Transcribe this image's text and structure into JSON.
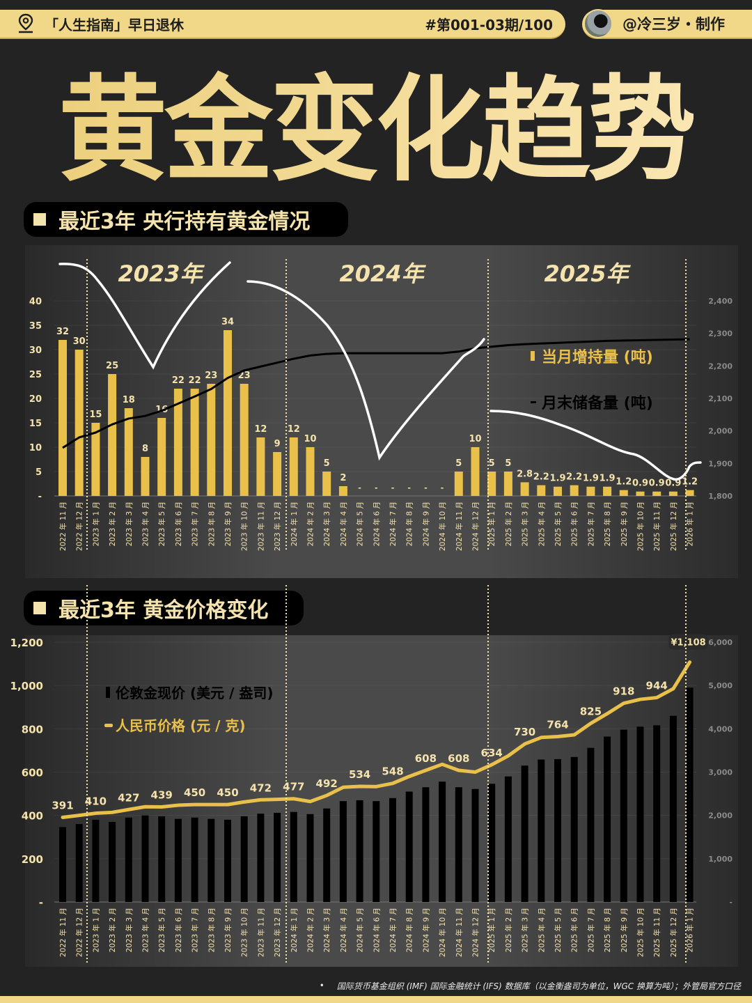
{
  "header": {
    "series_label": "「人生指南」早日退休",
    "issue": "#第001-03期/100",
    "author": "@冷三岁・制作",
    "icons": {
      "location": "map-pin-icon",
      "avatar": "avatar-photo"
    }
  },
  "hero_title": "黄金变化趋势",
  "colors": {
    "background": "#232323",
    "gold": "#e9c04a",
    "cream": "#f5e3ad",
    "banner": "#f1d888",
    "black": "#000000",
    "annotation": "#ffffff"
  },
  "section1": {
    "title": "最近3年 央行持有黄金情况"
  },
  "section2": {
    "title": "最近3年 黄金价格变化"
  },
  "footer": {
    "bullet": "•",
    "source": "国际货币基金组织 (IMF) 国际金融统计 (IFS) 数据库（以金衡盎司为单位，WGC 换算为吨）；外管局官方口径"
  },
  "chart_data": [
    {
      "type": "bar+line",
      "title": "最近3年 央行持有黄金情况",
      "year_labels": [
        "2023年",
        "2024年",
        "2025年"
      ],
      "categories": [
        "2022 年 11 月",
        "2022 年 12 月",
        "2023 年 1 月",
        "2023 年 2 月",
        "2023 年 3 月",
        "2023 年 4 月",
        "2023 年 5 月",
        "2023 年 6 月",
        "2023 年 7 月",
        "2023 年 8 月",
        "2023 年 9 月",
        "2023 年 10 月",
        "2023 年 11 月",
        "2023 年 12 月",
        "2024 年 1 月",
        "2024 年 2 月",
        "2024 年 3 月",
        "2024 年 4 月",
        "2024 年 5 月",
        "2024 年 6 月",
        "2024 年 7 月",
        "2024 年 8 月",
        "2024 年 9 月",
        "2024 年 10 月",
        "2024 年 11 月",
        "2024 年 12 月",
        "2025 年 1 月",
        "2025 年 2 月",
        "2025 年 3 月",
        "2025 年 4 月",
        "2025 年 5 月",
        "2025 年 6 月",
        "2025 年 7 月",
        "2025 年 8 月",
        "2025 年 9 月",
        "2025 年 10 月",
        "2025 年 11 月",
        "2025 年 12 月",
        "2026 年 1 月"
      ],
      "series": [
        {
          "name": "当月增持量 (吨)",
          "type": "bar",
          "axis": "left",
          "color": "#e9c04a",
          "values": [
            32,
            30,
            15,
            25,
            18,
            8,
            16,
            22,
            22,
            23,
            34,
            23,
            12,
            9,
            12,
            10,
            5,
            2,
            0,
            0,
            0,
            0,
            0,
            0,
            5,
            10,
            5,
            5,
            2.8,
            2.2,
            1.9,
            2.2,
            1.9,
            1.9,
            1.2,
            0.9,
            0.9,
            0.9,
            1.2
          ],
          "labels": [
            "32",
            "30",
            "15",
            "25",
            "18",
            "8",
            "16",
            "22",
            "22",
            "23",
            "34",
            "23",
            "12",
            "9",
            "12",
            "10",
            "5",
            "2",
            "-",
            "-",
            "-",
            "-",
            "-",
            "-",
            "5",
            "10",
            "5",
            "5",
            "2.8",
            "2.2",
            "1.9",
            "2.2",
            "1.9",
            "1.9",
            "1.2",
            "0.9",
            "0.9",
            "0.9",
            "1.2"
          ]
        },
        {
          "name": "月末储备量 (吨)",
          "type": "line",
          "axis": "right",
          "color": "#000000",
          "values": [
            1948,
            1980,
            1995,
            2020,
            2038,
            2046,
            2062,
            2084,
            2106,
            2129,
            2163,
            2186,
            2198,
            2210,
            2222,
            2232,
            2237,
            2239,
            2239,
            2239,
            2239,
            2239,
            2239,
            2239,
            2244,
            2254,
            2259,
            2264,
            2267,
            2269,
            2271,
            2273,
            2275,
            2277,
            2278,
            2279,
            2280,
            2281,
            2282
          ]
        }
      ],
      "left_axis": {
        "ticks": [
          "-",
          "5",
          "10",
          "15",
          "20",
          "25",
          "30",
          "35",
          "40"
        ],
        "range": [
          0,
          40
        ]
      },
      "right_axis": {
        "ticks": [
          "1,800",
          "1,900",
          "2,000",
          "2,100",
          "2,200",
          "2,300",
          "2,400"
        ],
        "range": [
          1800,
          2400
        ]
      },
      "legend": [
        {
          "label": "当月增持量 (吨)",
          "color": "#e9c04a",
          "marker": "bar"
        },
        {
          "label": "月末储备量 (吨)",
          "color": "#000000",
          "marker": "line"
        }
      ],
      "annotation": "hand-drawn white trend curve"
    },
    {
      "type": "bar+line",
      "title": "最近3年 黄金价格变化",
      "categories": [
        "2022 年 11 月",
        "2022 年 12 月",
        "2023 年 1 月",
        "2023 年 2 月",
        "2023 年 3 月",
        "2023 年 4 月",
        "2023 年 5 月",
        "2023 年 6 月",
        "2023 年 7 月",
        "2023 年 8 月",
        "2023 年 9 月",
        "2023 年 10 月",
        "2023 年 11 月",
        "2023 年 12 月",
        "2024 年 1 月",
        "2024 年 2 月",
        "2024 年 3 月",
        "2024 年 4 月",
        "2024 年 5 月",
        "2024 年 6 月",
        "2024 年 7 月",
        "2024 年 8 月",
        "2024 年 9 月",
        "2024 年 10 月",
        "2024 年 11 月",
        "2024 年 12 月",
        "2025 年 1 月",
        "2025 年 2 月",
        "2025 年 3 月",
        "2025 年 4 月",
        "2025 年 5 月",
        "2025 年 6 月",
        "2025 年 7 月",
        "2025 年 8 月",
        "2025 年 9 月",
        "2025 年 10 月",
        "2025 年 11 月",
        "2025 年 12 月",
        "2026 年 1 月"
      ],
      "series": [
        {
          "name": "伦敦金现价 (美元 / 盎司)",
          "type": "bar",
          "axis": "right",
          "color": "#000000",
          "values": [
            1730,
            1800,
            1900,
            1850,
            1950,
            2000,
            1980,
            1920,
            1950,
            1920,
            1900,
            1980,
            2040,
            2060,
            2080,
            2030,
            2160,
            2330,
            2350,
            2330,
            2400,
            2550,
            2650,
            2780,
            2650,
            2610,
            2730,
            2900,
            3150,
            3290,
            3300,
            3350,
            3560,
            3820,
            3980,
            4050,
            4080,
            4300,
            4950
          ]
        },
        {
          "name": "人民币价格 (元 / 克)",
          "type": "line",
          "axis": "left",
          "color": "#e9c04a",
          "values": [
            391,
            400,
            410,
            414,
            427,
            440,
            439,
            447,
            450,
            450,
            450,
            462,
            472,
            474,
            477,
            464,
            492,
            530,
            534,
            533,
            548,
            580,
            608,
            636,
            608,
            600,
            634,
            675,
            730,
            760,
            764,
            772,
            825,
            870,
            918,
            936,
            944,
            985,
            1108
          ],
          "labels": {
            "0": "391",
            "2": "410",
            "4": "427",
            "6": "439",
            "8": "450",
            "10": "450",
            "12": "472",
            "14": "477",
            "16": "492",
            "18": "534",
            "20": "548",
            "22": "608",
            "24": "608",
            "26": "634",
            "28": "730",
            "30": "764",
            "32": "825",
            "34": "918",
            "36": "944",
            "38": "¥1,108"
          }
        }
      ],
      "left_axis": {
        "ticks": [
          "-",
          "200",
          "400",
          "600",
          "800",
          "1,000",
          "1,200"
        ],
        "range": [
          0,
          1200
        ]
      },
      "right_axis": {
        "ticks": [
          "-",
          "1,000",
          "2,000",
          "3,000",
          "4,000",
          "5,000",
          "6,000"
        ],
        "range": [
          0,
          6000
        ]
      },
      "legend": [
        {
          "label": "伦敦金现价 (美元 / 盎司)",
          "color": "#000000",
          "marker": "bar"
        },
        {
          "label": "人民币价格 (元 / 克)",
          "color": "#e9c04a",
          "marker": "line"
        }
      ],
      "callout": "¥1,108"
    }
  ]
}
